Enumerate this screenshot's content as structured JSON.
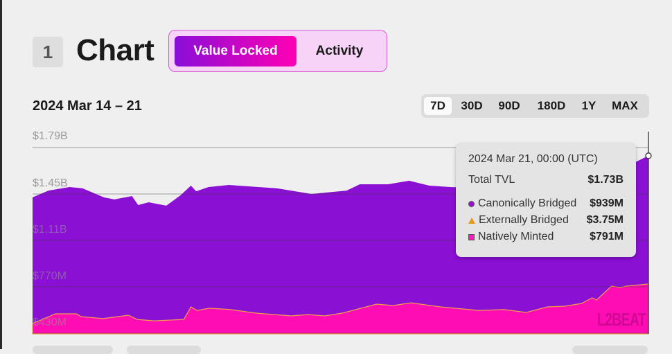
{
  "section_number": "1",
  "section_title": "Chart",
  "chart_switch": {
    "active": "Value Locked",
    "inactive": "Activity"
  },
  "date_range": "2024 Mar 14 – 21",
  "periods": [
    "7D",
    "30D",
    "90D",
    "180D",
    "1Y",
    "MAX"
  ],
  "selected_period": "7D",
  "tooltip": {
    "date": "2024 Mar 21, 00:00 (UTC)",
    "total_label": "Total TVL",
    "total_value": "$1.73B",
    "rows": [
      {
        "label": "Canonically Bridged",
        "value": "$939M",
        "marker": "circle"
      },
      {
        "label": "Externally Bridged",
        "value": "$3.75M",
        "marker": "triangle"
      },
      {
        "label": "Natively Minted",
        "value": "$791M",
        "marker": "square"
      }
    ]
  },
  "watermark": "L2BEAT",
  "colors": {
    "canonical": "#8a10d4",
    "external": "#e39a1c",
    "native": "#ff0db4",
    "accent_from": "#8a0ed8",
    "accent_to": "#ff00b4"
  },
  "chart_data": {
    "type": "area",
    "stacked": true,
    "title": "Value Locked",
    "x_unit": "days since 2024 Mar 14",
    "xlim": [
      0,
      7
    ],
    "ylim": [
      430,
      1790
    ],
    "y_unit": "$M",
    "y_ticks": [
      "$1.79B",
      "$1.45B",
      "$1.11B",
      "$770M",
      "$430M"
    ],
    "y_tick_values": [
      1790,
      1450,
      1110,
      770,
      430
    ],
    "grid": true,
    "series": [
      {
        "name": "Total TVL (top of Canonically Bridged)",
        "points": [
          [
            0,
            1425
          ],
          [
            0.18,
            1475
          ],
          [
            0.42,
            1501
          ],
          [
            0.57,
            1491
          ],
          [
            0.81,
            1425
          ],
          [
            0.93,
            1410
          ],
          [
            1.13,
            1435
          ],
          [
            1.2,
            1369
          ],
          [
            1.32,
            1389
          ],
          [
            1.52,
            1364
          ],
          [
            1.68,
            1440
          ],
          [
            1.8,
            1511
          ],
          [
            1.86,
            1470
          ],
          [
            2.0,
            1501
          ],
          [
            2.23,
            1516
          ],
          [
            2.78,
            1491
          ],
          [
            3.17,
            1450
          ],
          [
            3.57,
            1475
          ],
          [
            3.72,
            1521
          ],
          [
            4.04,
            1521
          ],
          [
            4.28,
            1547
          ],
          [
            4.51,
            1511
          ],
          [
            4.75,
            1501
          ],
          [
            5.14,
            1491
          ],
          [
            5.61,
            1511
          ],
          [
            6.09,
            1541
          ],
          [
            6.56,
            1602
          ],
          [
            6.87,
            1689
          ],
          [
            7,
            1730
          ]
        ]
      },
      {
        "name": "Natively Minted",
        "points": [
          [
            0,
            501
          ],
          [
            0.26,
            572
          ],
          [
            0.5,
            572
          ],
          [
            0.55,
            552
          ],
          [
            0.8,
            537
          ],
          [
            1.09,
            562
          ],
          [
            1.19,
            531
          ],
          [
            1.38,
            521
          ],
          [
            1.72,
            531
          ],
          [
            1.8,
            623
          ],
          [
            1.87,
            597
          ],
          [
            2.01,
            613
          ],
          [
            2.25,
            603
          ],
          [
            2.54,
            577
          ],
          [
            2.94,
            557
          ],
          [
            3.13,
            567
          ],
          [
            3.32,
            557
          ],
          [
            3.52,
            577
          ],
          [
            3.91,
            643
          ],
          [
            4.1,
            633
          ],
          [
            4.3,
            653
          ],
          [
            4.64,
            623
          ],
          [
            5.07,
            597
          ],
          [
            5.36,
            603
          ],
          [
            5.61,
            582
          ],
          [
            5.85,
            623
          ],
          [
            6.05,
            628
          ],
          [
            6.24,
            648
          ],
          [
            6.36,
            689
          ],
          [
            6.41,
            674
          ],
          [
            6.58,
            775
          ],
          [
            6.68,
            765
          ],
          [
            6.75,
            775
          ],
          [
            7,
            791
          ]
        ]
      }
    ],
    "hover_point": {
      "x": 7,
      "total": 1730
    }
  }
}
